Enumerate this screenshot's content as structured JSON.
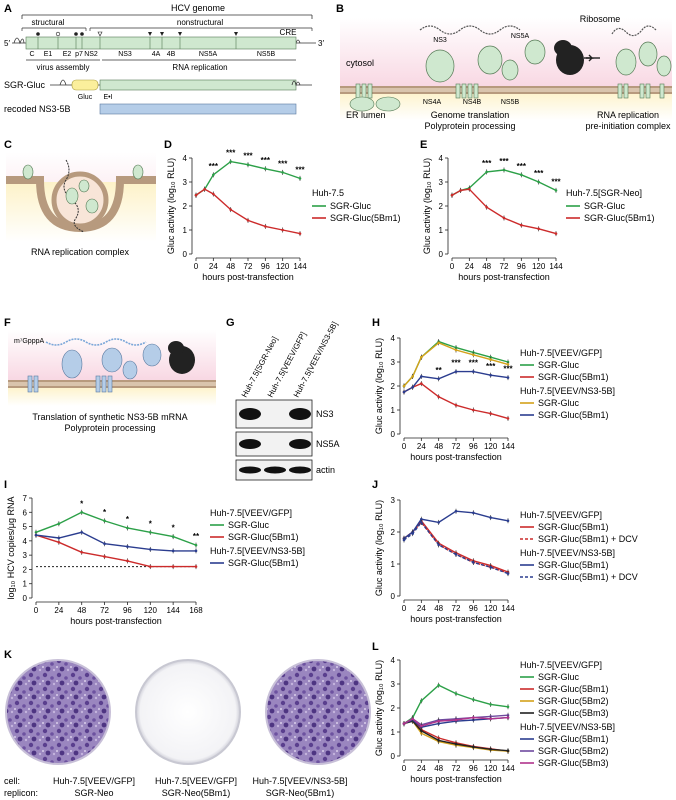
{
  "panel_labels": {
    "A": "A",
    "B": "B",
    "C": "C",
    "D": "D",
    "E": "E",
    "F": "F",
    "G": "G",
    "H": "H",
    "I": "I",
    "J": "J",
    "K": "K",
    "L": "L"
  },
  "panel_a": {
    "title": "HCV genome",
    "structural": "structural",
    "nonstructural": "nonstructural",
    "five_prime": "5′",
    "three_prime": "3′",
    "cre": "CRE",
    "segments": [
      "C",
      "E1",
      "E2",
      "p7",
      "NS2",
      "NS3",
      "4A",
      "4B",
      "NS5A",
      "NS5B"
    ],
    "virus_assembly": "virus assembly",
    "rna_replication": "RNA replication",
    "sgr_gluc": "SGR-Gluc",
    "gluc": "Gluc",
    "ei": "E•I",
    "recoded": "recoded NS3-5B"
  },
  "panel_b": {
    "cytosol": "cytosol",
    "ribosome": "Ribosome",
    "er_lumen": "ER lumen",
    "proteins": [
      "NS3",
      "NS5A",
      "NS4A",
      "NS4B",
      "NS5B"
    ],
    "caption1_l1": "Genome translation",
    "caption1_l2": "Polyprotein processing",
    "caption2_l1": "RNA replication",
    "caption2_l2": "pre-initiation complex"
  },
  "panel_c": {
    "caption": "RNA replication complex"
  },
  "panel_f": {
    "cap": "m⁷GpppA",
    "caption_l1": "Translation of synthetic NS3-5B mRNA",
    "caption_l2": "Polyprotein processing"
  },
  "panel_g": {
    "lanes": [
      "Huh-7.5[SGR-Neo]",
      "Huh-7.5[VEEV/GFP]",
      "Huh-7.5[VEEV/NS3-5B]"
    ],
    "bands": [
      "NS3",
      "NS5A",
      "actin"
    ]
  },
  "panel_k": {
    "row_cell": "cell:",
    "row_replicon": "replicon:",
    "cells": [
      "Huh-7.5[VEEV/GFP]",
      "Huh-7.5[VEEV/GFP]",
      "Huh-7.5[VEEV/NS3-5B]"
    ],
    "replicons": [
      "SGR-Neo",
      "SGR-Neo(5Bm1)",
      "SGR-Neo(5Bm1)"
    ]
  },
  "colors": {
    "green": "#2ca048",
    "red": "#cc2b2b",
    "blue": "#2b3d8f",
    "yellow": "#d4a21a",
    "black": "#222222",
    "magenta": "#b0338c",
    "purple": "#6e4a9e",
    "membrane": "#b79a7e",
    "hcv_green": "#cfe8cf",
    "recoded_blue": "#b5cde8"
  },
  "chart_data": [
    {
      "panel": "D",
      "type": "line",
      "xlabel": "hours post-transfection",
      "ylabel": "Gluc activity (log₁₀ RLU)",
      "x": [
        0,
        12,
        24,
        48,
        72,
        96,
        120,
        144
      ],
      "xticks": [
        0,
        24,
        48,
        72,
        96,
        120,
        144
      ],
      "ylim": [
        0,
        4
      ],
      "yticks": [
        0,
        1,
        2,
        3,
        4
      ],
      "legend_title": "Huh-7.5",
      "stars": [
        {
          "x": 24,
          "t": "***"
        },
        {
          "x": 48,
          "t": "***"
        },
        {
          "x": 72,
          "t": "***"
        },
        {
          "x": 96,
          "t": "***"
        },
        {
          "x": 120,
          "t": "***"
        },
        {
          "x": 144,
          "t": "***"
        }
      ],
      "series": [
        {
          "name": "SGR-Gluc",
          "color": "#2ca048",
          "values": [
            2.45,
            2.7,
            3.3,
            3.85,
            3.72,
            3.55,
            3.4,
            3.15
          ]
        },
        {
          "name": "SGR-Gluc(5Bm1)",
          "color": "#cc2b2b",
          "values": [
            2.45,
            2.7,
            2.5,
            1.85,
            1.4,
            1.15,
            1.0,
            0.85
          ]
        }
      ]
    },
    {
      "panel": "E",
      "type": "line",
      "xlabel": "hours post-transfection",
      "ylabel": "Gluc activity (log₁₀ RLU)",
      "x": [
        0,
        12,
        24,
        48,
        72,
        96,
        120,
        144
      ],
      "xticks": [
        0,
        24,
        48,
        72,
        96,
        120,
        144
      ],
      "ylim": [
        0,
        4
      ],
      "yticks": [
        0,
        1,
        2,
        3,
        4
      ],
      "legend_title": "Huh-7.5[SGR-Neo]",
      "stars": [
        {
          "x": 48,
          "t": "***"
        },
        {
          "x": 72,
          "t": "***"
        },
        {
          "x": 96,
          "t": "***"
        },
        {
          "x": 120,
          "t": "***"
        },
        {
          "x": 144,
          "t": "***"
        }
      ],
      "series": [
        {
          "name": "SGR-Gluc",
          "color": "#2ca048",
          "values": [
            2.45,
            2.65,
            2.75,
            3.42,
            3.5,
            3.3,
            3.0,
            2.65
          ]
        },
        {
          "name": "SGR-Gluc(5Bm1)",
          "color": "#cc2b2b",
          "values": [
            2.45,
            2.65,
            2.7,
            1.95,
            1.5,
            1.2,
            1.05,
            0.85
          ]
        }
      ]
    },
    {
      "panel": "H",
      "type": "line",
      "xlabel": "hours post-transfection",
      "ylabel": "Gluc activity (log₁₀ RLU)",
      "x": [
        0,
        12,
        24,
        48,
        72,
        96,
        120,
        144
      ],
      "xticks": [
        0,
        24,
        48,
        72,
        96,
        120,
        144
      ],
      "ylim": [
        0,
        4
      ],
      "yticks": [
        0,
        1,
        2,
        3,
        4
      ],
      "legend_groups": [
        "Huh-7.5[VEEV/GFP]",
        "Huh-7.5[VEEV/NS3-5B]"
      ],
      "stars": [
        {
          "x": 48,
          "t": "**"
        },
        {
          "x": 72,
          "t": "***"
        },
        {
          "x": 96,
          "t": "***"
        },
        {
          "x": 120,
          "t": "***"
        },
        {
          "x": 144,
          "t": "***"
        }
      ],
      "series": [
        {
          "name": "SGR-Gluc",
          "group": 0,
          "color": "#2ca048",
          "values": [
            2.0,
            2.4,
            3.2,
            3.85,
            3.6,
            3.4,
            3.2,
            3.0
          ]
        },
        {
          "name": "SGR-Gluc(5Bm1)",
          "group": 0,
          "color": "#cc2b2b",
          "values": [
            1.75,
            1.95,
            2.1,
            1.55,
            1.2,
            1.0,
            0.85,
            0.65
          ]
        },
        {
          "name": "SGR-Gluc",
          "group": 1,
          "color": "#d4a21a",
          "values": [
            2.0,
            2.4,
            3.2,
            3.8,
            3.5,
            3.3,
            3.1,
            2.9
          ]
        },
        {
          "name": "SGR-Gluc(5Bm1)",
          "group": 1,
          "color": "#2b3d8f",
          "values": [
            1.75,
            1.95,
            2.4,
            2.3,
            2.6,
            2.6,
            2.45,
            2.35
          ]
        }
      ]
    },
    {
      "panel": "I",
      "type": "line",
      "xlabel": "hours post-transfection",
      "ylabel": "log₁₀ HCV copies/μg RNA",
      "x": [
        0,
        24,
        48,
        72,
        96,
        120,
        144,
        168
      ],
      "xticks": [
        0,
        24,
        48,
        72,
        96,
        120,
        144,
        168
      ],
      "ylim": [
        0,
        7
      ],
      "yticks": [
        0,
        1,
        2,
        3,
        4,
        5,
        6,
        7
      ],
      "legend_groups": [
        "Huh-7.5[VEEV/GFP]",
        "Huh-7.5[VEEV/NS3-5B]"
      ],
      "detection_limit": 2.2,
      "stars": [
        {
          "x": 48,
          "t": "*"
        },
        {
          "x": 72,
          "t": "*"
        },
        {
          "x": 96,
          "t": "*"
        },
        {
          "x": 120,
          "t": "*"
        },
        {
          "x": 144,
          "t": "*"
        },
        {
          "x": 168,
          "t": "**"
        }
      ],
      "series": [
        {
          "name": "SGR-Gluc",
          "group": 0,
          "color": "#2ca048",
          "values": [
            4.6,
            5.2,
            6.0,
            5.4,
            4.9,
            4.6,
            4.3,
            3.7
          ]
        },
        {
          "name": "SGR-Gluc(5Bm1)",
          "group": 0,
          "color": "#cc2b2b",
          "values": [
            4.4,
            3.9,
            3.2,
            2.9,
            2.6,
            2.2,
            2.2,
            2.2
          ]
        },
        {
          "name": "SGR-Gluc(5Bm1)",
          "group": 1,
          "color": "#2b3d8f",
          "values": [
            4.4,
            4.2,
            4.6,
            3.8,
            3.6,
            3.4,
            3.3,
            3.3
          ]
        }
      ]
    },
    {
      "panel": "J",
      "type": "line",
      "xlabel": "hours post-transfection",
      "ylabel": "Gluc activity (log₁₀ RLU)",
      "x": [
        0,
        12,
        24,
        48,
        72,
        96,
        120,
        144
      ],
      "xticks": [
        0,
        24,
        48,
        72,
        96,
        120,
        144
      ],
      "ylim": [
        0,
        3
      ],
      "yticks": [
        0,
        1,
        2,
        3
      ],
      "legend_groups": [
        "Huh-7.5[VEEV/GFP]",
        "Huh-7.5[VEEV/NS3-5B]"
      ],
      "series": [
        {
          "name": "SGR-Gluc(5Bm1)",
          "group": 0,
          "color": "#cc2b2b",
          "values": [
            1.8,
            2.0,
            2.35,
            1.65,
            1.35,
            1.1,
            0.95,
            0.75
          ]
        },
        {
          "name": "SGR-Gluc(5Bm1) + DCV",
          "group": 0,
          "color": "#cc2b2b",
          "dashed": true,
          "values": [
            1.8,
            2.0,
            2.3,
            1.6,
            1.3,
            1.05,
            0.9,
            0.72
          ]
        },
        {
          "name": "SGR-Gluc(5Bm1)",
          "group": 1,
          "color": "#2b3d8f",
          "values": [
            1.8,
            2.0,
            2.4,
            2.3,
            2.65,
            2.6,
            2.45,
            2.35
          ]
        },
        {
          "name": "SGR-Gluc(5Bm1) + DCV",
          "group": 1,
          "color": "#2b3d8f",
          "dashed": true,
          "values": [
            1.75,
            1.95,
            2.3,
            1.6,
            1.3,
            1.05,
            0.9,
            0.7
          ]
        }
      ]
    },
    {
      "panel": "L",
      "type": "line",
      "xlabel": "hours post-transfection",
      "ylabel": "Gluc activity (log₁₀ RLU)",
      "x": [
        0,
        12,
        24,
        48,
        72,
        96,
        120,
        144
      ],
      "xticks": [
        0,
        24,
        48,
        72,
        96,
        120,
        144
      ],
      "ylim": [
        0,
        4
      ],
      "yticks": [
        0,
        1,
        2,
        3,
        4
      ],
      "legend_groups": [
        "Huh-7.5[VEEV/GFP]",
        "Huh-7.5[VEEV/NS3-5B]"
      ],
      "series": [
        {
          "name": "SGR-Gluc",
          "group": 0,
          "color": "#2ca048",
          "values": [
            1.35,
            1.6,
            2.3,
            2.95,
            2.6,
            2.35,
            2.15,
            2.05
          ]
        },
        {
          "name": "SGR-Gluc(5Bm1)",
          "group": 0,
          "color": "#cc2b2b",
          "values": [
            1.35,
            1.5,
            1.1,
            0.75,
            0.55,
            0.4,
            0.3,
            0.2
          ]
        },
        {
          "name": "SGR-Gluc(5Bm2)",
          "group": 0,
          "color": "#d4a21a",
          "values": [
            1.35,
            1.45,
            0.95,
            0.6,
            0.45,
            0.35,
            0.25,
            0.2
          ]
        },
        {
          "name": "SGR-Gluc(5Bm3)",
          "group": 0,
          "color": "#222222",
          "values": [
            1.35,
            1.45,
            1.05,
            0.65,
            0.5,
            0.38,
            0.28,
            0.22
          ]
        },
        {
          "name": "SGR-Gluc(5Bm1)",
          "group": 1,
          "color": "#2b3d8f",
          "values": [
            1.35,
            1.5,
            1.2,
            1.35,
            1.45,
            1.5,
            1.55,
            1.6
          ]
        },
        {
          "name": "SGR-Gluc(5Bm2)",
          "group": 1,
          "color": "#6e4a9e",
          "values": [
            1.35,
            1.55,
            1.3,
            1.5,
            1.55,
            1.6,
            1.65,
            1.7
          ]
        },
        {
          "name": "SGR-Gluc(5Bm3)",
          "group": 1,
          "color": "#b0338c",
          "values": [
            1.35,
            1.55,
            1.25,
            1.45,
            1.5,
            1.6,
            1.55,
            1.6
          ]
        }
      ]
    }
  ]
}
